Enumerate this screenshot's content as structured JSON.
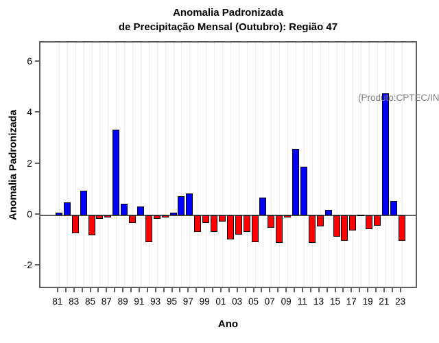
{
  "title": {
    "line1": "Anomalia Padronizada",
    "line2": "de Precipitação Mensal (Outubro): Região 47"
  },
  "annotation": "(Produto:CPTEC/INPE)",
  "axes": {
    "x_title": "Ano",
    "y_title": "Anomalia Padronizada"
  },
  "chart_data": {
    "type": "bar",
    "title": "Anomalia Padronizada de Precipitação Mensal (Outubro): Região 47",
    "xlabel": "Ano",
    "ylabel": "Anomalia Padronizada",
    "annotation": "(Produto:CPTEC/INPE)",
    "x": [
      1981,
      1982,
      1983,
      1984,
      1985,
      1986,
      1987,
      1988,
      1989,
      1990,
      1991,
      1992,
      1993,
      1994,
      1995,
      1996,
      1997,
      1998,
      1999,
      2000,
      2001,
      2002,
      2003,
      2004,
      2005,
      2006,
      2007,
      2008,
      2009,
      2010,
      2011,
      2012,
      2013,
      2014,
      2015,
      2016,
      2017,
      2018,
      2019,
      2020,
      2021,
      2022,
      2023
    ],
    "values": [
      0.1,
      0.5,
      -0.7,
      0.95,
      -0.8,
      -0.15,
      -0.1,
      3.35,
      0.45,
      -0.3,
      0.35,
      -1.05,
      -0.15,
      -0.1,
      0.1,
      0.75,
      0.85,
      -0.65,
      -0.3,
      -0.65,
      -0.25,
      -0.95,
      -0.75,
      -0.65,
      -1.05,
      0.7,
      -0.5,
      -1.1,
      -0.1,
      2.6,
      1.9,
      -1.1,
      -0.45,
      0.2,
      -0.85,
      -1.0,
      -0.6,
      0.0,
      -0.55,
      -0.4,
      4.8,
      0.55,
      -1.0
    ],
    "x_tick_labels": [
      "81",
      "83",
      "85",
      "87",
      "89",
      "91",
      "93",
      "95",
      "97",
      "99",
      "01",
      "03",
      "05",
      "07",
      "09",
      "11",
      "13",
      "15",
      "17",
      "19",
      "21",
      "23"
    ],
    "x_label_every": 2,
    "yticks": [
      -2,
      0,
      2,
      4,
      6
    ],
    "ylim": [
      -2.9,
      6.8
    ],
    "grid": "vertical dotted, one per year",
    "legend": "none",
    "positive_color": "#0000ff",
    "negative_color": "#ff0000",
    "bar_border_color": "#000000",
    "zero_line_color": "#5f5f5f"
  }
}
